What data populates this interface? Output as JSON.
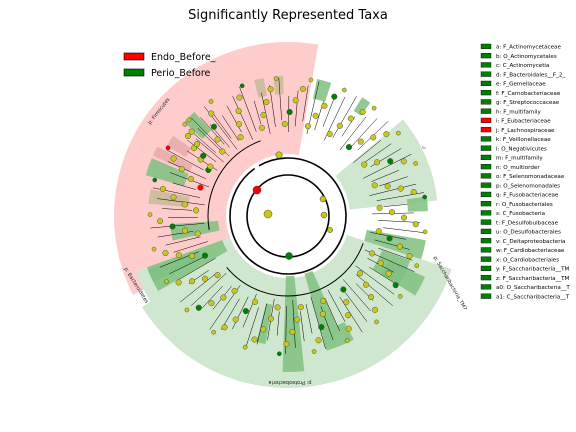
{
  "title": "Significantly Represented Taxa",
  "colors": {
    "endo": "#ff0000",
    "perio": "#008000",
    "node": "#c8c81a",
    "node_stroke": "#6f6f00",
    "endo_sector": "#ffcccc",
    "perio_sector": "#cfe6cf",
    "perio_band": "#7fbf7f",
    "endo_band": "#e8a9a9",
    "neutral_band": "#c8b896"
  },
  "legend": [
    {
      "label": "Endo_Before_",
      "color": "#ff0000"
    },
    {
      "label": "Perio_Before",
      "color": "#008000"
    }
  ],
  "outer_sectors": [
    {
      "label": "p: Firmicutes",
      "group": "endo"
    },
    {
      "label": "p: Bacteroidetes",
      "group": "perio"
    },
    {
      "label": "p: Proteobacteria",
      "group": "perio"
    },
    {
      "label": "p: Saccharibacteria_TM7",
      "group": "perio"
    },
    {
      "label": "c",
      "group": "perio"
    }
  ],
  "key": [
    {
      "label": "a: F_Actinomycetaceae",
      "group": "perio"
    },
    {
      "label": "b: O_Actinomycetales",
      "group": "perio"
    },
    {
      "label": "c: C_Actinomycetia",
      "group": "perio"
    },
    {
      "label": "d: F_Bacteroidales__F_2_",
      "group": "perio"
    },
    {
      "label": "e: F_Gemellaceae",
      "group": "perio"
    },
    {
      "label": "f: F_Carnobacteriaceae",
      "group": "perio"
    },
    {
      "label": "g: F_Streptococcaceae",
      "group": "perio"
    },
    {
      "label": "h: F_multifamily",
      "group": "perio"
    },
    {
      "label": "i: F_Eubacteriaceae",
      "group": "endo"
    },
    {
      "label": "j: F_Lachnospiraceae",
      "group": "endo"
    },
    {
      "label": "k: F_Veillonellaceae",
      "group": "perio"
    },
    {
      "label": "l: O_Negativicutes",
      "group": "perio"
    },
    {
      "label": "m: F_multifamily",
      "group": "perio"
    },
    {
      "label": "n: O_multiorder",
      "group": "perio"
    },
    {
      "label": "o: F_Selenomonadaceae",
      "group": "perio"
    },
    {
      "label": "p: O_Selenomonadales",
      "group": "perio"
    },
    {
      "label": "q: F_Fusobacteriaceae",
      "group": "perio"
    },
    {
      "label": "r: O_Fusobacteriales",
      "group": "perio"
    },
    {
      "label": "s: C_Fusobacteria",
      "group": "perio"
    },
    {
      "label": "t: F_Desulfobulbaceae",
      "group": "perio"
    },
    {
      "label": "u: O_Desulfobacterales",
      "group": "perio"
    },
    {
      "label": "v: C_Deltaproteobacteria",
      "group": "perio"
    },
    {
      "label": "w: F_Cardiobacteriaceae",
      "group": "perio"
    },
    {
      "label": "x: O_Cardiobacteriales",
      "group": "perio"
    },
    {
      "label": "y: F_Saccharibacteria__TM",
      "group": "perio"
    },
    {
      "label": "z: F_Saccharibacteria__TM",
      "group": "perio"
    },
    {
      "label": "a0: O_Saccharibacteria__T",
      "group": "perio"
    },
    {
      "label": "a1: C_Saccharibacteria__T",
      "group": "perio"
    }
  ]
}
